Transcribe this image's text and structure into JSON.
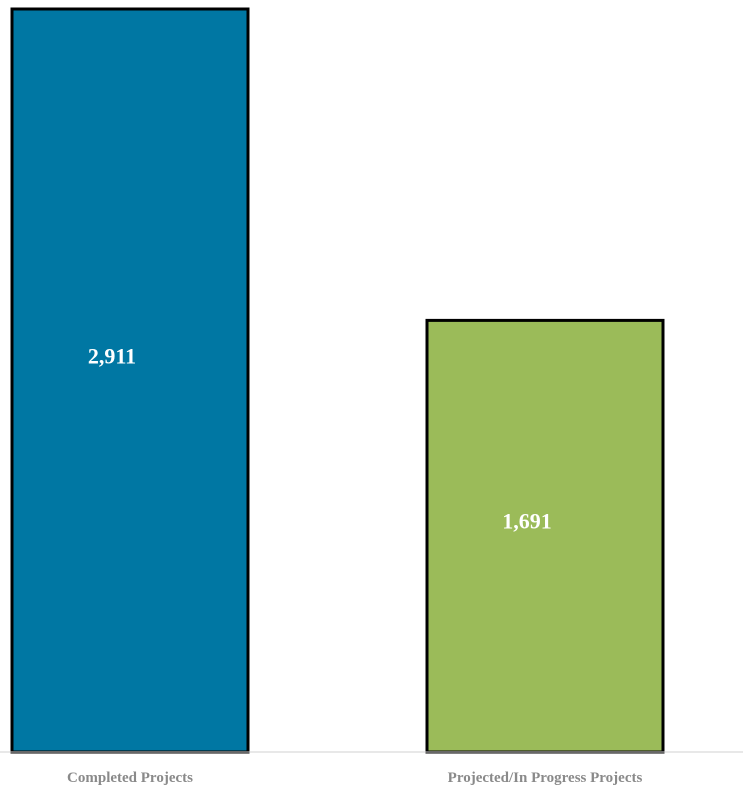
{
  "chart_data": {
    "type": "bar",
    "title": "",
    "xlabel": "",
    "ylabel": "",
    "categories": [
      "Completed Projects",
      "Projected/In Progress Projects"
    ],
    "values": [
      2911,
      1691
    ],
    "value_labels": [
      "2,911",
      "1,691"
    ],
    "bar_colors": [
      "#0077A3",
      "#9BBB59"
    ],
    "bar_border_color": "#000000",
    "axis_color": "#d0d0d0",
    "label_color": "#8a8a8a",
    "ylim": [
      0,
      2911
    ],
    "grid": false,
    "legend": "none"
  }
}
